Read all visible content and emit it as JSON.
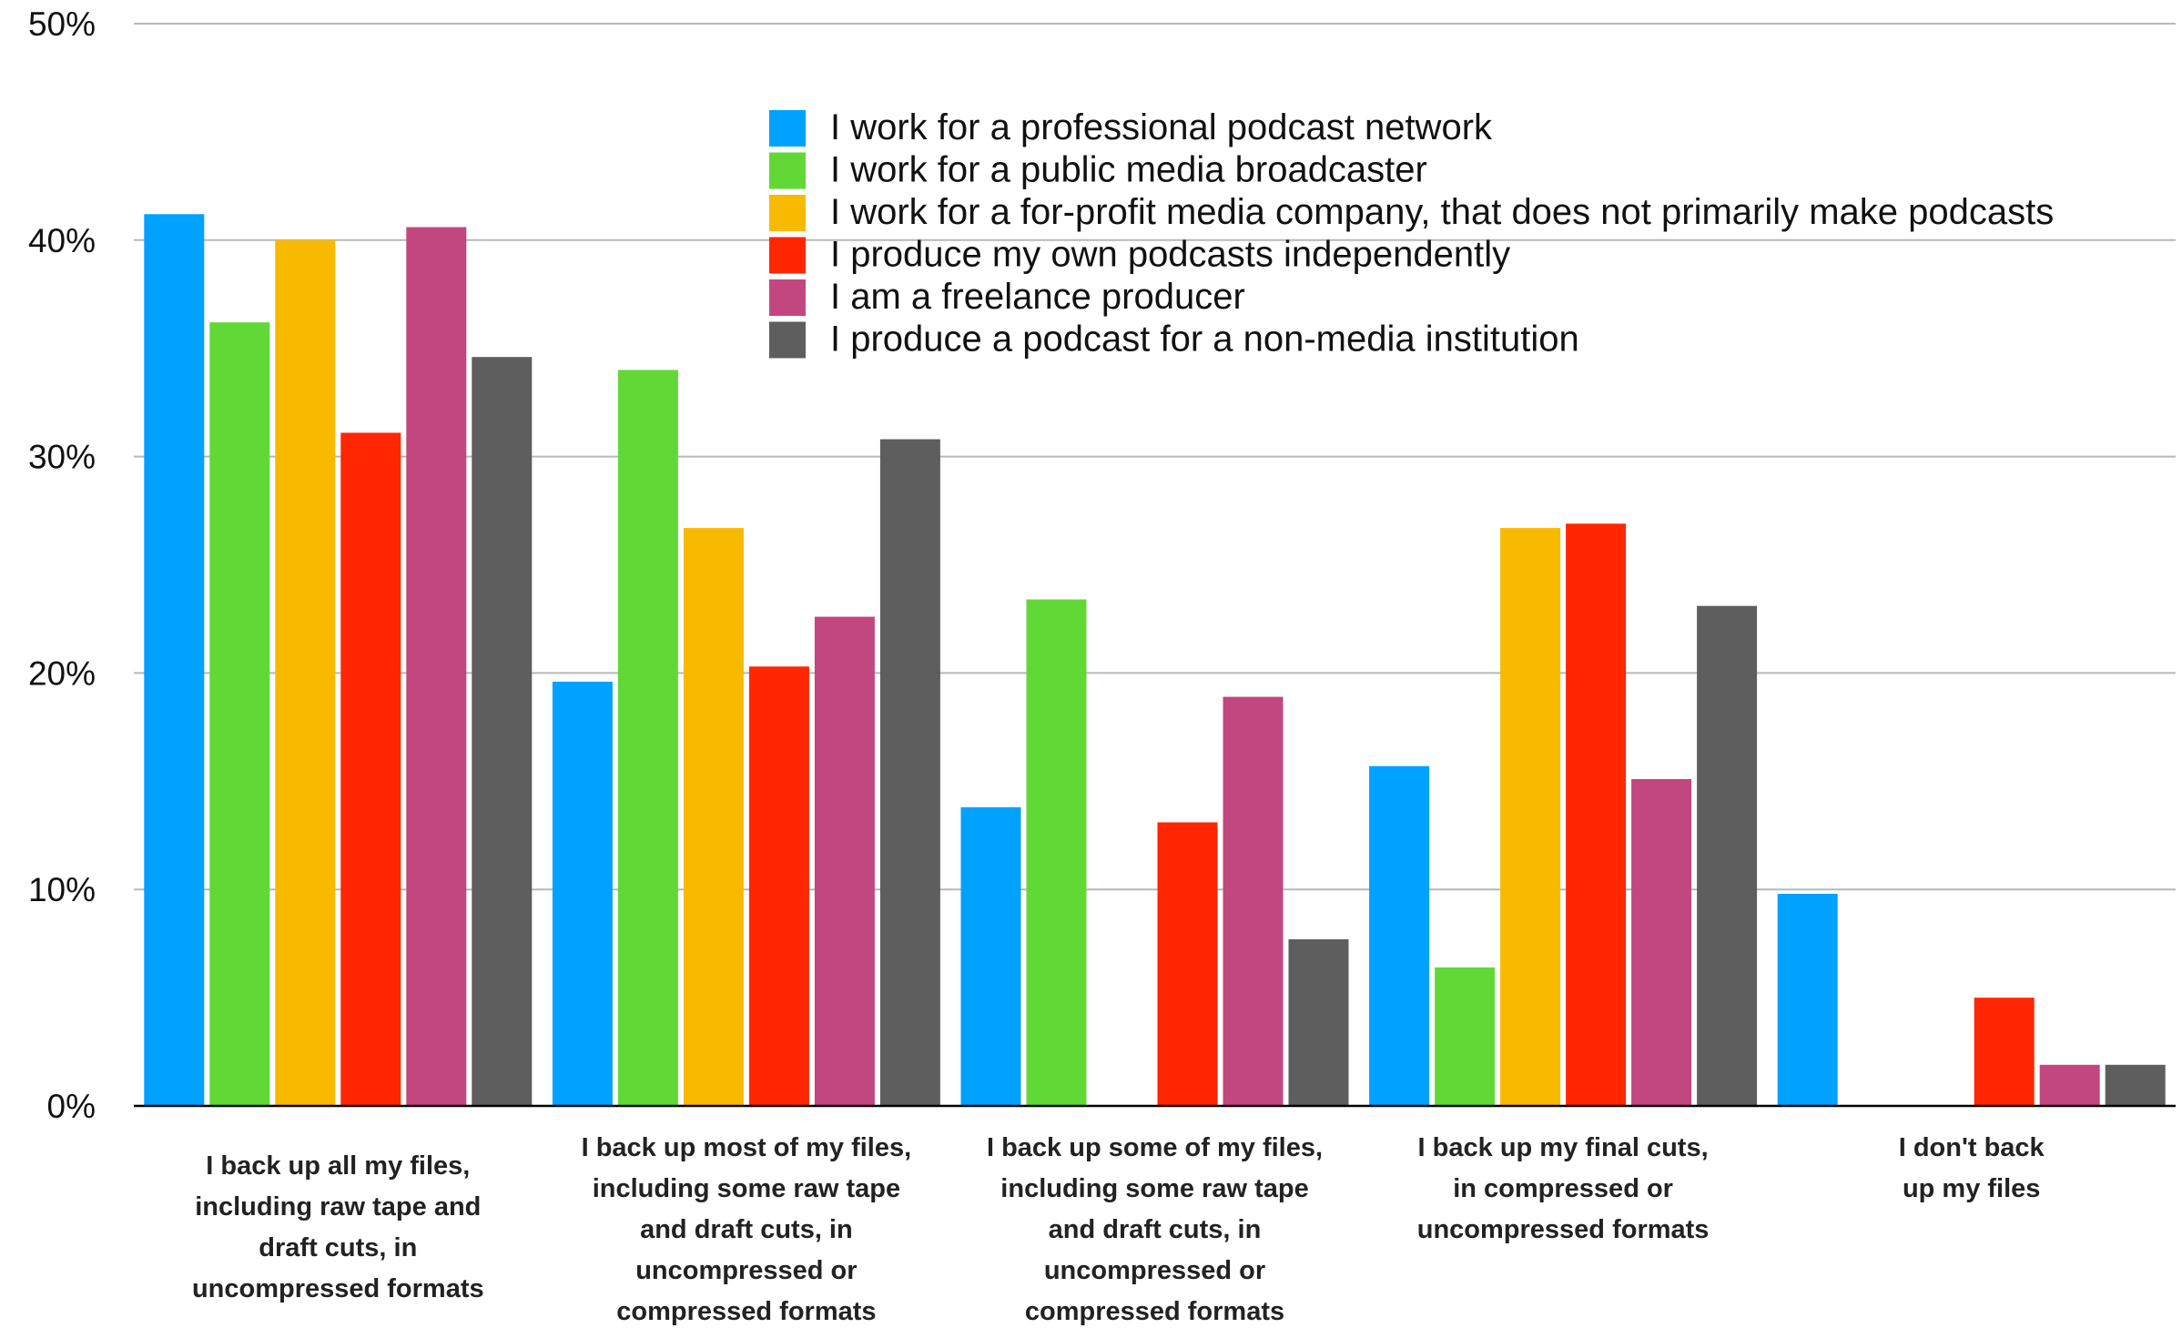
{
  "chart_data": {
    "type": "bar",
    "title": "",
    "xlabel": "",
    "ylabel": "",
    "ylim": [
      0,
      50
    ],
    "y_ticks": [
      0,
      10,
      20,
      30,
      40,
      50
    ],
    "y_tick_labels": [
      "0%",
      "10%",
      "20%",
      "30%",
      "40%",
      "50%"
    ],
    "grid": true,
    "legend_position": "top-center",
    "categories": [
      "I back up all my files, including raw tape and draft cuts, in uncompressed formats",
      "I back up most of my files, including some raw tape and draft cuts, in uncompressed or compressed formats",
      "I back up some of my files, including some raw tape and draft cuts, in uncompressed or compressed formats",
      "I back up my final cuts, in compressed or uncompressed formats",
      "I don't back up my files"
    ],
    "category_lines": [
      [
        "I back up all my files,",
        "including raw tape and",
        "draft cuts, in",
        "uncompressed formats"
      ],
      [
        "I back up most of my files,",
        "including some raw tape",
        "and draft cuts, in",
        "uncompressed or",
        "compressed formats"
      ],
      [
        "I back up some of my files,",
        "including some raw tape",
        "and draft cuts, in",
        "uncompressed or",
        "compressed formats"
      ],
      [
        "I back up my final cuts,",
        "in compressed or",
        "uncompressed formats"
      ],
      [
        "I don't back",
        "up my files"
      ]
    ],
    "series": [
      {
        "name": "I work for a professional podcast network",
        "color": "#00a2ff",
        "values": [
          41.2,
          19.6,
          13.8,
          15.7,
          9.8
        ]
      },
      {
        "name": "I work for a public media broadcaster",
        "color": "#61d836",
        "values": [
          36.2,
          34.0,
          23.4,
          6.4,
          0
        ]
      },
      {
        "name": "I work for a for-profit media company, that does not primarily make podcasts",
        "color": "#f8ba00",
        "values": [
          40.0,
          26.7,
          0,
          26.7,
          0
        ]
      },
      {
        "name": "I produce my own podcasts independently",
        "color": "#ff2600",
        "values": [
          31.1,
          20.3,
          13.1,
          26.9,
          5.0
        ]
      },
      {
        "name": "I am a freelance producer",
        "color": "#c2477f",
        "values": [
          40.6,
          22.6,
          18.9,
          15.1,
          1.9
        ]
      },
      {
        "name": "I produce a podcast for a non-media institution",
        "color": "#5e5e5e",
        "values": [
          34.6,
          30.8,
          7.7,
          23.1,
          1.9
        ]
      }
    ]
  }
}
